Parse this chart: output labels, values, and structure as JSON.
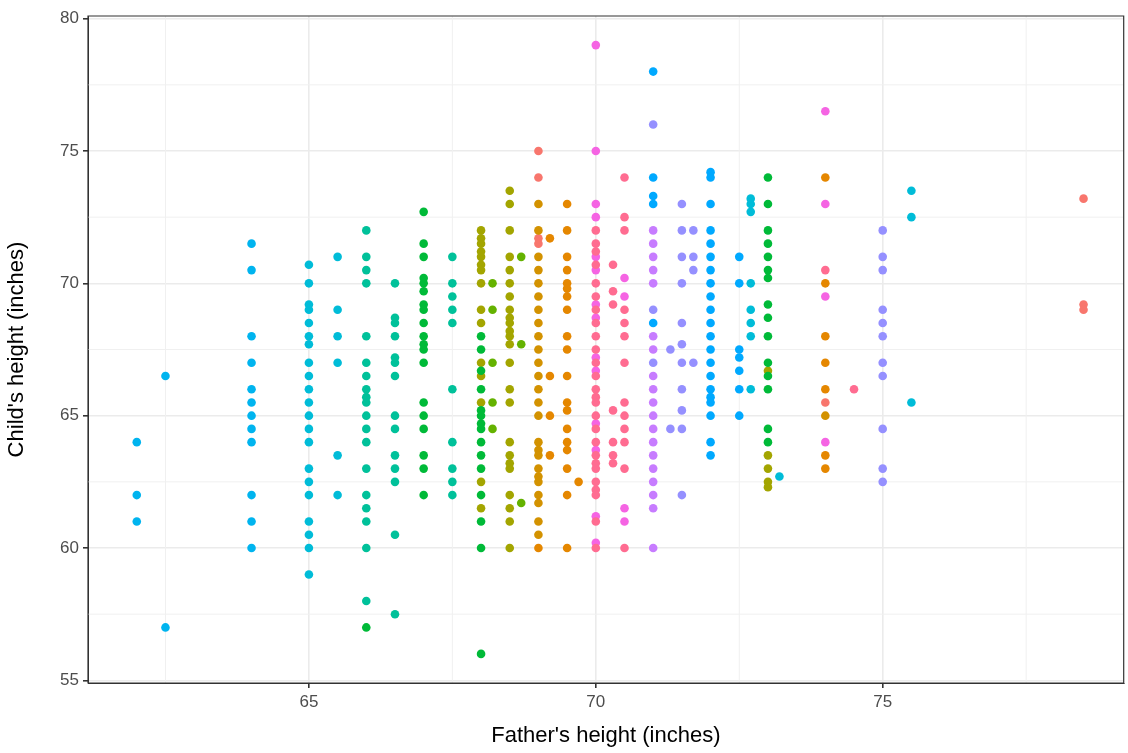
{
  "chart_data": {
    "type": "scatter",
    "xlabel": "Father's height (inches)",
    "ylabel": "Child's height (inches)",
    "xlim": [
      61.15,
      79.2
    ],
    "ylim": [
      54.9,
      80.1
    ],
    "xticks": [
      65,
      70,
      75
    ],
    "yticks": [
      55,
      60,
      65,
      70,
      75,
      80
    ],
    "grid": true,
    "legend": false,
    "marker": "circle",
    "series": [
      {
        "color": "#00b4ef",
        "x": [
          62,
          62,
          62,
          62.5,
          62.5,
          64,
          64,
          64,
          64,
          64,
          64,
          64,
          64,
          64,
          64,
          64,
          64
        ],
        "values": [
          64,
          62,
          61,
          66.5,
          57,
          71.5,
          70.5,
          68,
          67,
          66,
          65.5,
          65,
          64.5,
          64,
          62,
          61,
          60
        ]
      },
      {
        "color": "#00bcd8",
        "x": [
          65,
          65,
          65,
          65,
          65,
          65,
          65,
          65,
          65,
          65,
          65,
          65,
          65,
          65,
          65,
          65,
          65,
          65,
          65,
          65,
          65,
          65.5,
          65.5,
          65.5,
          65.5,
          65.5,
          65.5,
          72.7,
          72.7,
          72.7,
          72.7,
          72.7,
          72.7,
          72.7,
          72.7,
          73.2,
          75.5,
          75.5,
          75.5
        ],
        "values": [
          70.7,
          70,
          69.2,
          69,
          68,
          67.7,
          67,
          66.5,
          66,
          65.5,
          65,
          64.5,
          64,
          63,
          62.5,
          62,
          61,
          60.5,
          60,
          59,
          68.5,
          71,
          69,
          68,
          67,
          63.5,
          62,
          73.2,
          73,
          72.7,
          70,
          69,
          68.5,
          68,
          66,
          62.7,
          73.5,
          72.5,
          65.5
        ]
      },
      {
        "color": "#00c19a",
        "x": [
          66,
          66,
          66,
          66,
          66,
          66,
          66,
          66,
          66,
          66,
          66,
          66,
          66,
          66,
          66,
          66,
          66,
          66,
          66,
          66.5,
          66.5,
          66.5,
          66.5,
          66.5,
          66.5,
          66.5,
          66.5,
          66.5,
          66.5,
          66.5,
          66.5,
          66.5,
          66.5,
          67.5,
          67.5,
          67.5,
          67.5,
          67.5,
          67.5,
          67.5,
          67.5,
          67.5,
          67.5
        ],
        "values": [
          72,
          71,
          70.5,
          70,
          68,
          67,
          66.5,
          66,
          65.7,
          65.5,
          65,
          64.5,
          64,
          63,
          62,
          61.5,
          61,
          60,
          58,
          70,
          68.7,
          68.5,
          68,
          67.2,
          67,
          66.5,
          65,
          64.5,
          63.5,
          63,
          62.5,
          60.5,
          57.5,
          71,
          70,
          69.5,
          69,
          68.5,
          66,
          64,
          63,
          62.5,
          62
        ]
      },
      {
        "color": "#00ba38",
        "x": [
          66,
          67,
          67,
          67,
          67,
          67,
          67,
          67,
          67,
          67,
          67,
          67,
          67,
          67,
          67,
          67,
          67,
          67,
          67,
          67,
          68,
          68,
          68,
          68,
          68,
          68,
          68,
          68,
          68,
          68,
          68,
          68,
          68,
          68,
          68,
          73,
          73,
          73,
          73,
          73,
          73,
          73,
          73,
          73,
          73,
          73,
          73,
          73,
          73,
          73
        ],
        "values": [
          57,
          72.7,
          71.5,
          71,
          70.2,
          70,
          69.7,
          69.2,
          69,
          68.5,
          68,
          67.7,
          67.5,
          67,
          65.5,
          65,
          64.5,
          63.5,
          63,
          62,
          68,
          67.5,
          66.7,
          66,
          65.2,
          65,
          64.7,
          64.5,
          64,
          63.5,
          63,
          62,
          61,
          60,
          56,
          74,
          73,
          72,
          71.5,
          71,
          70.5,
          70.2,
          69.2,
          68.7,
          68,
          67,
          66.5,
          66,
          64.5,
          64
        ]
      },
      {
        "color": "#a3a500",
        "x": [
          68,
          68,
          68,
          68,
          68,
          68,
          68,
          68,
          68,
          68,
          68,
          68,
          68,
          68,
          68,
          68.5,
          68.5,
          68.5,
          68.5,
          68.5,
          68.5,
          68.5,
          68.5,
          68.5,
          68.5,
          68.5,
          68.5,
          68.5,
          68.5,
          68.5,
          68.5,
          68.5,
          68.5,
          68.5,
          68.5,
          68.5,
          68.5,
          68.5,
          68.5,
          73,
          73,
          73,
          73,
          73
        ],
        "values": [
          72,
          71.7,
          71.5,
          71.2,
          71,
          70.7,
          70.5,
          70,
          69,
          68.5,
          67,
          66.5,
          65.5,
          62.5,
          61.5,
          73.5,
          73,
          72,
          71,
          70.5,
          70,
          69.5,
          69,
          68.7,
          68.5,
          68.2,
          68,
          67.7,
          67,
          66,
          65.5,
          64,
          63.5,
          63.2,
          63,
          62,
          61.5,
          61,
          60,
          66.7,
          63.5,
          63,
          62.5,
          62.3
        ]
      },
      {
        "color": "#64b200",
        "x": [
          68.2,
          68.2,
          68.2,
          68.2,
          68.2,
          68.7,
          68.7,
          68.7
        ],
        "values": [
          70,
          69,
          67,
          65.5,
          64.5,
          71,
          67.7,
          61.7
        ]
      },
      {
        "color": "#d39200",
        "x": [
          69,
          69,
          69,
          69,
          69,
          69,
          69,
          69,
          69,
          69,
          69,
          69,
          69,
          69,
          69,
          69,
          69,
          69,
          69,
          69,
          69,
          69,
          69,
          69,
          69,
          74
        ],
        "values": [
          73,
          72,
          71,
          70.5,
          70,
          69.5,
          69,
          68.5,
          68,
          67.5,
          67,
          66.5,
          66,
          65.5,
          65,
          64,
          63.7,
          63.5,
          63,
          62.7,
          62.5,
          62,
          61.7,
          61,
          60.5,
          65
        ]
      },
      {
        "color": "#e58700",
        "x": [
          69,
          69.2,
          69.2,
          69.2,
          69.2,
          69.5,
          69.5,
          69.5,
          69.5,
          69.5,
          69.5,
          69.5,
          69.5,
          69.5,
          69.5,
          69.5,
          69.5,
          69.5,
          69.5,
          69.5,
          69.5,
          69.5,
          69.5,
          69.5,
          69.7,
          74,
          74,
          74,
          74,
          74,
          74,
          74
        ],
        "values": [
          60,
          71.7,
          66.5,
          65,
          63.5,
          73,
          72,
          71,
          70.5,
          70,
          69.8,
          69.5,
          69,
          68,
          67.5,
          66.5,
          65.5,
          65.2,
          64.5,
          64,
          63.7,
          63,
          62,
          60,
          62.5,
          74,
          70,
          68,
          67,
          66,
          63.5,
          63
        ]
      },
      {
        "color": "#f8766d",
        "x": [
          69,
          69,
          69,
          69,
          74,
          78.5,
          78.5,
          78.5
        ],
        "values": [
          75,
          74,
          71.7,
          71.5,
          65.5,
          73.2,
          69.2,
          69
        ]
      },
      {
        "color": "#ff6c91",
        "x": [
          70,
          70,
          70,
          70,
          70,
          70,
          70,
          70,
          70,
          70,
          70,
          70,
          70,
          70,
          70,
          70,
          70,
          70,
          70,
          70,
          70,
          70,
          70,
          70,
          70,
          70,
          70.3,
          70.3,
          70.3,
          70.3,
          70.3,
          70.3,
          70.3,
          70.5,
          70.5,
          70.5,
          70.5,
          70.5,
          70.5,
          70.5,
          70.5,
          70.5,
          70.5,
          70.5,
          70.5,
          70.5,
          74,
          74.5
        ],
        "values": [
          72,
          71.5,
          71.2,
          70.7,
          70,
          69.5,
          69,
          68.5,
          68,
          67.5,
          67,
          66.5,
          66,
          65.7,
          65.5,
          65,
          64.5,
          64,
          63.5,
          63.2,
          63,
          62.5,
          62.2,
          62,
          61,
          60,
          70.7,
          69.7,
          69.2,
          65.2,
          64,
          63.5,
          63.2,
          74,
          72.5,
          72,
          69,
          68.5,
          68,
          67,
          65.5,
          65,
          64.5,
          64,
          63,
          60,
          70.5,
          66
        ]
      },
      {
        "color": "#f564e3",
        "x": [
          70,
          70,
          70,
          70,
          70,
          70,
          70,
          70,
          70,
          70,
          70,
          70,
          70,
          70,
          70.5,
          70.5,
          70.5,
          70.5,
          74,
          74,
          74,
          74
        ],
        "values": [
          79,
          75,
          73,
          72.5,
          71,
          70.5,
          69.2,
          68.7,
          67.2,
          66.7,
          64.7,
          63.7,
          61.2,
          60.2,
          70.2,
          69.5,
          61.5,
          61,
          76.5,
          73,
          69.5,
          64
        ]
      },
      {
        "color": "#c77cff",
        "x": [
          71,
          71,
          71,
          71,
          71,
          71,
          71,
          71,
          71,
          71,
          71,
          71,
          71,
          71,
          71,
          71,
          71,
          71,
          71
        ],
        "values": [
          72,
          71.5,
          71,
          70.5,
          70,
          68,
          67.5,
          66.5,
          66,
          65.5,
          65,
          64.5,
          64,
          63.5,
          63,
          62.5,
          62,
          61.5,
          60
        ]
      },
      {
        "color": "#9590ff",
        "x": [
          71,
          71,
          71,
          71.3,
          71.3,
          71.5,
          71.5,
          71.5,
          71.5,
          71.5,
          71.5,
          71.5,
          71.5,
          71.5,
          71.5,
          71.5,
          71.7,
          71.7,
          71.7,
          71.7,
          75,
          75,
          75,
          75,
          75,
          75,
          75,
          75,
          75,
          75,
          75
        ],
        "values": [
          76,
          69,
          67,
          67.5,
          64.5,
          73,
          72,
          71,
          70,
          68.5,
          67.7,
          67,
          66,
          65.2,
          64.5,
          62,
          72,
          71,
          70.5,
          67,
          72,
          71,
          70.5,
          69,
          68.5,
          68,
          67,
          66.5,
          64.5,
          63,
          62.5
        ]
      },
      {
        "color": "#00a9ff",
        "x": [
          71,
          71,
          71,
          71,
          71,
          72,
          72,
          72,
          72,
          72,
          72,
          72,
          72,
          72,
          72,
          72,
          72,
          72,
          72,
          72,
          72,
          72,
          72,
          72,
          72,
          72,
          72.5,
          72.5,
          72.5,
          72.5,
          72.5,
          72.5,
          72.5
        ],
        "values": [
          78,
          74,
          73.3,
          73,
          68.5,
          74.2,
          74,
          73,
          72,
          71.5,
          71,
          70.5,
          70,
          69.5,
          69,
          68.5,
          68,
          67.5,
          67,
          66.5,
          66,
          65.7,
          65.5,
          65,
          64,
          63.5,
          71,
          70,
          67.5,
          67.2,
          66.7,
          66,
          65
        ]
      }
    ]
  }
}
